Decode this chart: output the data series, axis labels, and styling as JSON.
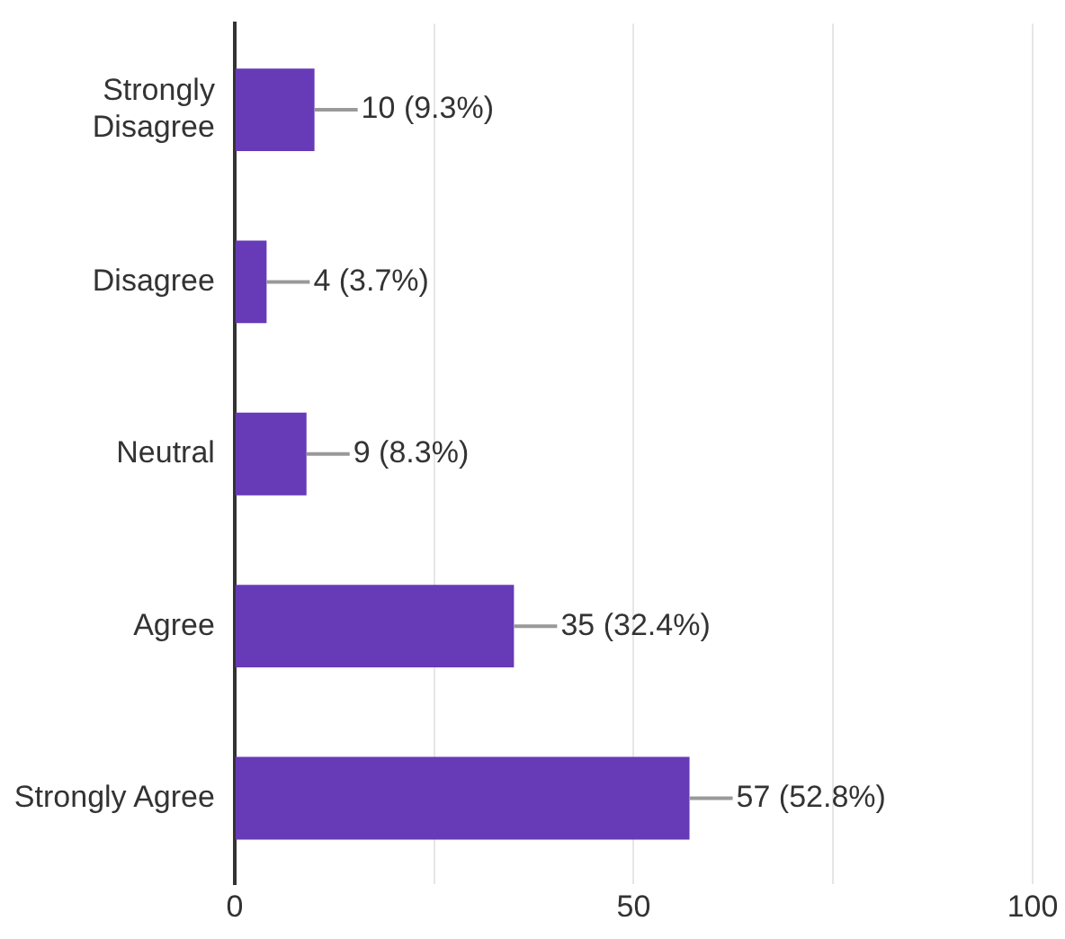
{
  "chart_data": {
    "type": "bar",
    "orientation": "horizontal",
    "categories": [
      "Strongly Disagree",
      "Disagree",
      "Neutral",
      "Agree",
      "Strongly Agree"
    ],
    "values": [
      10,
      4,
      9,
      35,
      57
    ],
    "value_labels": [
      "10 (9.3%)",
      "4 (3.7%)",
      "9 (8.3%)",
      "35 (32.4%)",
      "57 (52.8%)"
    ],
    "color": "#673ab7",
    "xlim": [
      0,
      100
    ],
    "xticks": [
      0,
      {
        "value": 25,
        "label": null
      },
      50,
      {
        "value": 75,
        "label": null
      },
      100
    ],
    "grid": "x",
    "legend": false
  }
}
